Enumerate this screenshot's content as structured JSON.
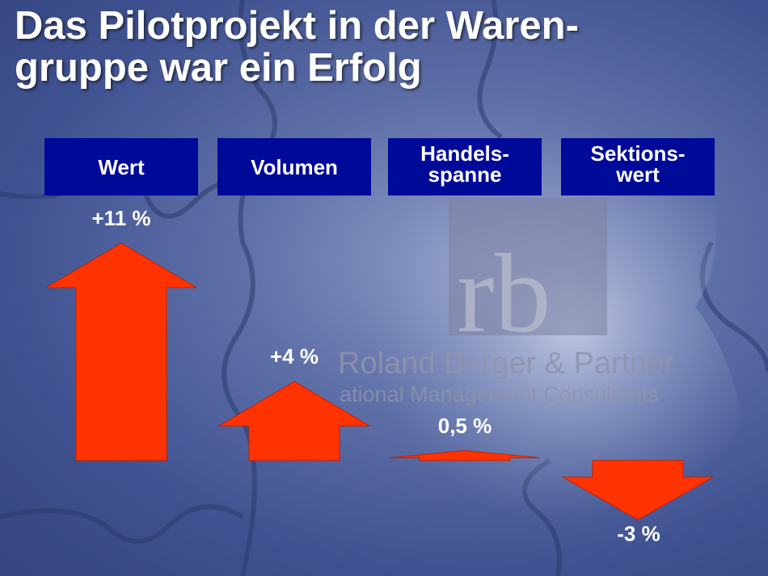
{
  "title": {
    "line1": "Das Pilotprojekt in der Waren-",
    "line2": "gruppe war ein Erfolg"
  },
  "watermark": {
    "monogram": "rb",
    "company": "Roland Berger & Partner",
    "tagline": "ational Management Consultants"
  },
  "colors": {
    "header_bg": "#000a99",
    "arrow": "#ff3300",
    "text": "#ffffff"
  },
  "chart_data": {
    "type": "bar",
    "categories": [
      [
        "Wert"
      ],
      [
        "Volumen"
      ],
      [
        "Handels-",
        "spanne"
      ],
      [
        "Sektions-",
        "wert"
      ]
    ],
    "values": [
      11,
      4,
      0.5,
      -3
    ],
    "value_labels": [
      "+11 %",
      "+4 %",
      "0,5 %",
      "-3 %"
    ],
    "unit": "%",
    "marks": "arrows"
  }
}
